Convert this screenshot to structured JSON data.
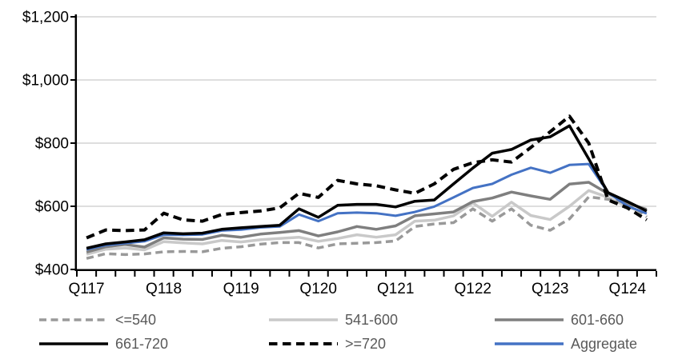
{
  "chart_data": {
    "type": "line",
    "title": "",
    "categories": [
      "Q117",
      "Q217",
      "Q317",
      "Q417",
      "Q118",
      "Q218",
      "Q318",
      "Q418",
      "Q119",
      "Q219",
      "Q319",
      "Q419",
      "Q120",
      "Q220",
      "Q320",
      "Q420",
      "Q121",
      "Q221",
      "Q321",
      "Q421",
      "Q122",
      "Q222",
      "Q322",
      "Q422",
      "Q123",
      "Q223",
      "Q323",
      "Q423",
      "Q124",
      "Q224"
    ],
    "x_axis_labels_shown": [
      "Q117",
      "Q118",
      "Q119",
      "Q120",
      "Q121",
      "Q122",
      "Q123",
      "Q124"
    ],
    "x_label_every": 4,
    "ylim": [
      400,
      1200
    ],
    "y_ticks": [
      {
        "value": 400,
        "label": "$400"
      },
      {
        "value": 600,
        "label": "$600"
      },
      {
        "value": 800,
        "label": "$800"
      },
      {
        "value": 1000,
        "label": "$1,000"
      },
      {
        "value": 1200,
        "label": "$1,200"
      }
    ],
    "grid": "horizontal",
    "legend_position": "bottom",
    "axis_color": "#000000",
    "gridline_color": "#D9D9D9",
    "tick_label_color": "#000000",
    "legend_text_color": "#595959",
    "series": [
      {
        "name": "<=540",
        "color": "#999999",
        "dash": true,
        "values": [
          435,
          450,
          447,
          449,
          456,
          457,
          456,
          467,
          472,
          480,
          485,
          485,
          468,
          481,
          483,
          485,
          490,
          536,
          544,
          548,
          592,
          553,
          592,
          540,
          524,
          560,
          630,
          622,
          612,
          566
        ]
      },
      {
        "name": "541-600",
        "color": "#C9C9C9",
        "dash": false,
        "values": [
          448,
          464,
          468,
          462,
          488,
          484,
          481,
          492,
          487,
          494,
          498,
          502,
          489,
          498,
          510,
          502,
          510,
          553,
          556,
          570,
          611,
          568,
          613,
          571,
          558,
          600,
          650,
          628,
          598,
          578
        ]
      },
      {
        "name": "601-660",
        "color": "#7F7F7F",
        "dash": false,
        "values": [
          455,
          472,
          479,
          471,
          500,
          496,
          495,
          508,
          502,
          512,
          517,
          523,
          506,
          519,
          536,
          527,
          538,
          570,
          576,
          582,
          615,
          626,
          645,
          633,
          622,
          670,
          676,
          640,
          610,
          590
        ]
      },
      {
        "name": "661-720",
        "color": "#000000",
        "dash": false,
        "values": [
          467,
          481,
          487,
          494,
          516,
          513,
          515,
          527,
          532,
          536,
          540,
          592,
          565,
          603,
          606,
          606,
          598,
          616,
          620,
          671,
          721,
          768,
          780,
          810,
          820,
          855,
          750,
          643,
          615,
          585
        ]
      },
      {
        "name": ">=720",
        "color": "#000000",
        "dash": true,
        "values": [
          500,
          525,
          523,
          525,
          578,
          557,
          553,
          574,
          580,
          585,
          595,
          641,
          628,
          682,
          671,
          665,
          652,
          641,
          671,
          717,
          738,
          747,
          740,
          786,
          836,
          885,
          800,
          620,
          595,
          557
        ]
      },
      {
        "name": "Aggregate",
        "color": "#4472C4",
        "dash": false,
        "values": [
          463,
          477,
          483,
          489,
          510,
          509,
          511,
          523,
          526,
          533,
          536,
          574,
          553,
          578,
          580,
          578,
          570,
          582,
          599,
          628,
          658,
          671,
          700,
          722,
          706,
          731,
          734,
          643,
          601,
          577
        ]
      }
    ]
  }
}
